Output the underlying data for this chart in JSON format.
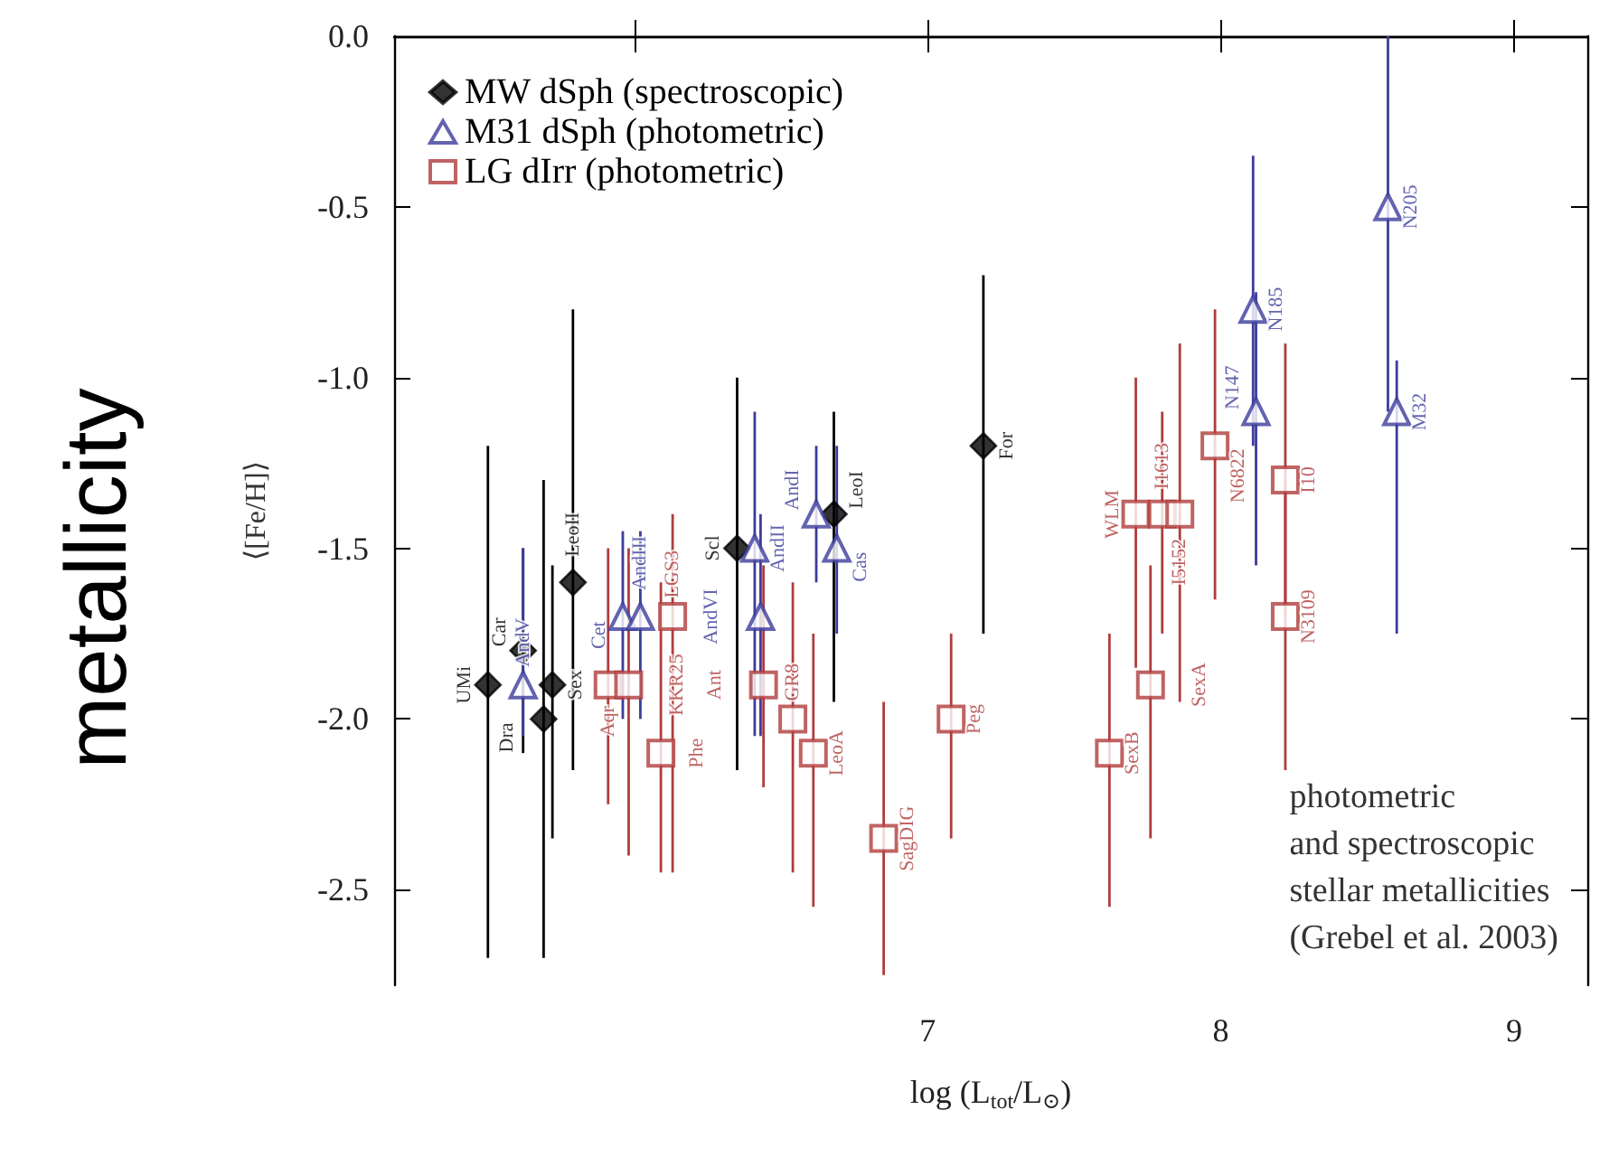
{
  "chart_data": {
    "type": "scatter",
    "title": "metallicity",
    "xlabel": "log (L$_{tot}$/L$_{⊙}$)",
    "ylabel": "⟨[Fe/H]⟩",
    "annotations": [
      "photometric\nand spectroscopic\nstellar metallicities\n(Grebel et al. 2003)"
    ],
    "xlim": [
      5.18,
      9.25
    ],
    "ylim": [
      -2.78,
      0
    ],
    "xticks": [
      {
        "value": 6,
        "label": null
      },
      7,
      8,
      9
    ],
    "yticks": [
      -2.5,
      {
        "value": -2,
        "label": "-2.0"
      },
      -1.5,
      {
        "value": -1,
        "label": "-1.0"
      },
      -0.5,
      {
        "value": 0,
        "label": "0.0"
      }
    ],
    "legend": "top left",
    "grid": false,
    "series": [
      {
        "name": "MW dSph (spectroscopic)",
        "color": "#000000",
        "marker": "diamond",
        "x": [
          5.5,
          5.62,
          5.69,
          5.72,
          5.79,
          6.35,
          6.68,
          7.19
        ],
        "values": [
          -1.9,
          -1.8,
          -2.0,
          -1.9,
          -1.6,
          -1.5,
          -1.4,
          -1.2
        ],
        "errors": [
          [
            -2.7,
            -1.2
          ],
          [
            -2.1,
            -1.5
          ],
          [
            -2.7,
            -1.3
          ],
          [
            -2.35,
            -1.55
          ],
          [
            -2.15,
            -0.8
          ],
          [
            -2.15,
            -1.0
          ],
          [
            -1.95,
            -1.1
          ],
          [
            -1.75,
            -0.7
          ]
        ],
        "value_labels": [
          "UMi",
          "Car",
          "Dra",
          "Sex",
          "LeoII",
          "Scl",
          "LeoI",
          "For"
        ]
      },
      {
        "name": "M31 dSph (photometric)",
        "color": "#3c3c9c",
        "marker": "triangle",
        "x": [
          5.62,
          5.96,
          6.02,
          6.41,
          6.43,
          6.62,
          6.69,
          8.12,
          8.11,
          8.57,
          8.6
        ],
        "values": [
          -1.9,
          -1.7,
          -1.7,
          -1.5,
          -1.7,
          -1.4,
          -1.5,
          -1.1,
          -0.8,
          -0.5,
          -1.1
        ],
        "errors": [
          [
            -2.05,
            -1.5
          ],
          [
            -2.0,
            -1.45
          ],
          [
            -2.0,
            -1.45
          ],
          [
            -2.05,
            -1.1
          ],
          [
            -2.05,
            -1.4
          ],
          [
            -1.6,
            -1.2
          ],
          [
            -1.75,
            -1.2
          ],
          [
            -1.55,
            -0.75
          ],
          [
            -1.2,
            -0.35
          ],
          [
            -1.1,
            0
          ],
          [
            -1.75,
            -0.95
          ]
        ],
        "value_labels": [
          "AndV",
          "Cet",
          "AndIII",
          "AndII",
          "AndVI",
          "AndI",
          "Cas",
          "N147",
          "N185",
          "N205",
          "M32"
        ]
      },
      {
        "name": "LG dIrr (photometric)",
        "color": "#b03c3c",
        "marker": "square",
        "x": [
          5.91,
          5.98,
          6.09,
          6.13,
          6.44,
          6.54,
          6.61,
          6.85,
          7.08,
          7.62,
          7.71,
          7.76,
          7.8,
          7.86,
          7.98,
          8.22,
          8.22
        ],
        "values": [
          -1.9,
          -1.9,
          -2.1,
          -1.7,
          -1.9,
          -2.0,
          -2.1,
          -2.35,
          -2.0,
          -2.1,
          -1.4,
          -1.9,
          -1.4,
          -1.4,
          -1.2,
          -1.3,
          -1.7
        ],
        "errors": [
          [
            -2.25,
            -1.5
          ],
          [
            -2.4,
            -1.5
          ],
          [
            -2.45,
            -1.6
          ],
          [
            -2.45,
            -1.4
          ],
          [
            -2.2,
            -1.55
          ],
          [
            -2.45,
            -1.6
          ],
          [
            -2.55,
            -1.75
          ],
          [
            -2.75,
            -1.95
          ],
          [
            -2.35,
            -1.75
          ],
          [
            -2.55,
            -1.75
          ],
          [
            -1.85,
            -1.0
          ],
          [
            -2.35,
            -1.55
          ],
          [
            -1.75,
            -1.1
          ],
          [
            -1.95,
            -0.9
          ],
          [
            -1.65,
            -0.8
          ],
          [
            -1.7,
            -0.9
          ],
          [
            -2.15,
            -1.3
          ]
        ],
        "value_labels": [
          "Aqr",
          "KKR25",
          "Phe",
          "LGS3",
          "Ant",
          "GR8",
          "LeoA",
          "SagDIG",
          "Peg",
          "SexB",
          "WLM",
          "SexA",
          "I1613",
          "I5152",
          "N6822",
          "I10",
          "N3109"
        ]
      }
    ]
  }
}
